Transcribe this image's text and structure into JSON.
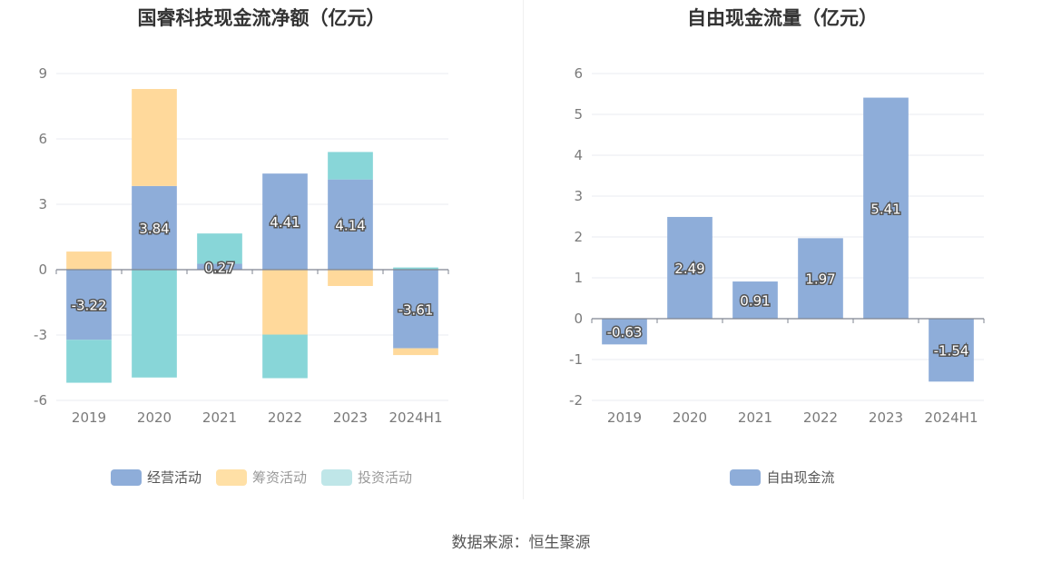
{
  "left": {
    "title": "国睿科技现金流净额（亿元）",
    "legend": [
      {
        "name": "经营活动",
        "color": "#8eadd9"
      },
      {
        "name": "筹资活动",
        "color": "#ffe0a6"
      },
      {
        "name": "投资活动",
        "color": "#bfe6e8"
      }
    ]
  },
  "right": {
    "title": "自由现金流量（亿元）",
    "legend": [
      {
        "name": "自由现金流",
        "color": "#8eadd9"
      }
    ]
  },
  "source": "数据来源：恒生聚源",
  "chart_data": [
    {
      "type": "bar",
      "stacked": true,
      "title": "国睿科技现金流净额（亿元）",
      "categories": [
        "2019",
        "2020",
        "2021",
        "2022",
        "2023",
        "2024H1"
      ],
      "ylim": [
        -6,
        9
      ],
      "yticks": [
        -6,
        -3,
        0,
        3,
        6,
        9
      ],
      "grid": true,
      "legend_position": "bottom",
      "series": [
        {
          "name": "经营活动",
          "color": "#8eadd9",
          "values": [
            -3.22,
            3.84,
            0.27,
            4.41,
            4.14,
            -3.61
          ],
          "labels": [
            "-3.22",
            "3.84",
            "0.27",
            "4.41",
            "4.14",
            "-3.61"
          ]
        },
        {
          "name": "筹资活动",
          "color": "#ffd99b",
          "values": [
            0.83,
            4.45,
            0,
            -2.98,
            -0.75,
            -0.31
          ]
        },
        {
          "name": "投资活动",
          "color": "#88d6d8",
          "values": [
            -1.97,
            -4.95,
            1.39,
            -2.0,
            1.26,
            0.1
          ]
        }
      ]
    },
    {
      "type": "bar",
      "title": "自由现金流量（亿元）",
      "categories": [
        "2019",
        "2020",
        "2021",
        "2022",
        "2023",
        "2024H1"
      ],
      "ylim": [
        -2,
        6
      ],
      "yticks": [
        -2,
        -1,
        0,
        1,
        2,
        3,
        4,
        5,
        6
      ],
      "grid": true,
      "legend_position": "bottom",
      "series": [
        {
          "name": "自由现金流",
          "color": "#8eadd9",
          "values": [
            -0.63,
            2.49,
            0.91,
            1.97,
            5.41,
            -1.54
          ],
          "labels": [
            "-0.63",
            "2.49",
            "0.91",
            "1.97",
            "5.41",
            "-1.54"
          ]
        }
      ]
    }
  ]
}
